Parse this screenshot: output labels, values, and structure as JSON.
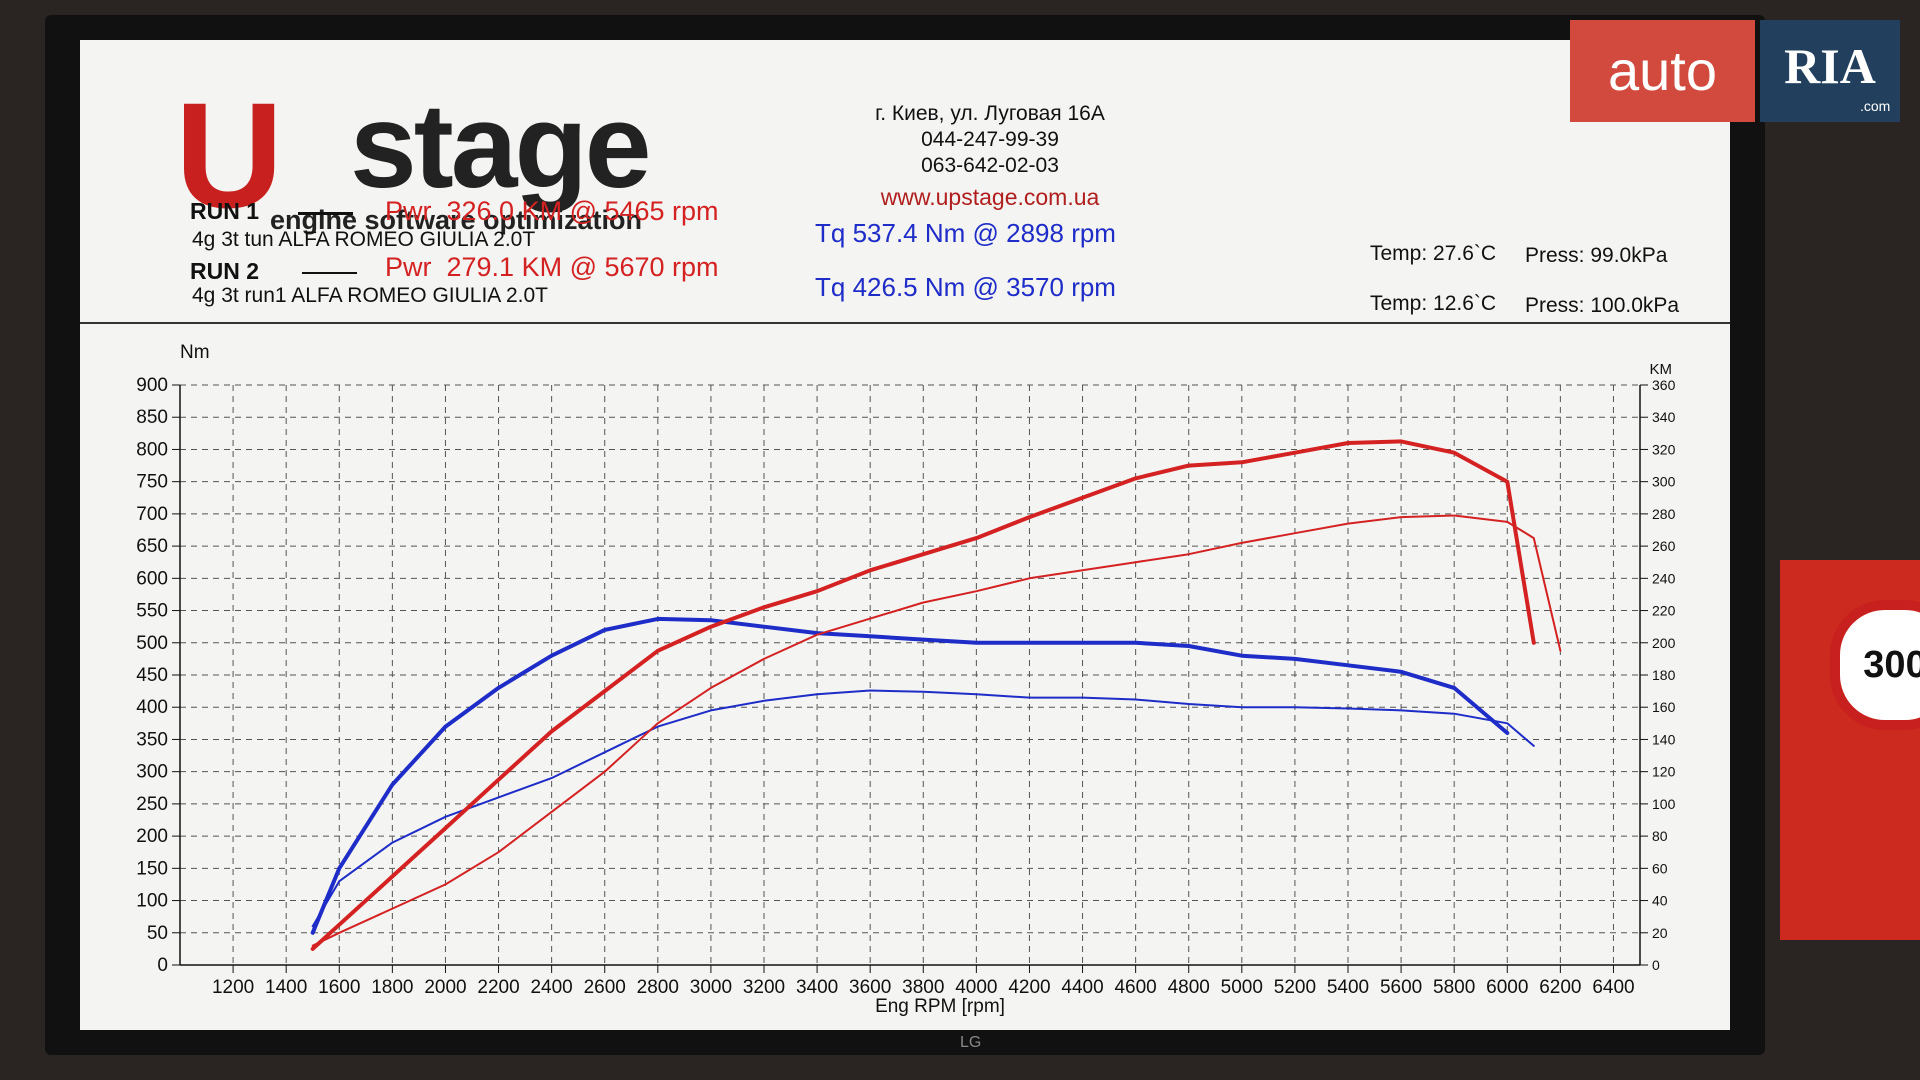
{
  "brand": {
    "logo_mark": "U",
    "logo_word": "stage",
    "tagline": "engine software optimization"
  },
  "contact": {
    "address": "г. Киев, ул. Луговая 16А",
    "phone_1": "044-247-99-39",
    "phone_2": "063-642-02-03",
    "website": "www.upstage.com.ua"
  },
  "runs": [
    {
      "label": "RUN 1",
      "power": "Pwr  326.0 KM @ 5465 rpm",
      "description": "4g 3t tun ALFA ROMEO GIULIA 2.0T",
      "torque": "Tq 537.4 Nm @ 2898 rpm",
      "temp": "Temp: 27.6`C",
      "press": "Press: 99.0kPa"
    },
    {
      "label": "RUN 2",
      "power": "Pwr  279.1 KM @ 5670 rpm",
      "description": "4g 3t run1 ALFA ROMEO GIULIA 2.0T",
      "torque": "Tq 426.5 Nm @ 3570 rpm",
      "temp": "Temp: 12.6`C",
      "press": "Press: 100.0kPa"
    }
  ],
  "watermark": {
    "left": "auto",
    "right": "RIA",
    "suffix": ".com"
  },
  "background": {
    "sign": "300",
    "monitor": "LG"
  },
  "chart_data": {
    "type": "line",
    "x_label": "Eng RPM [rpm]",
    "y_label": "Nm",
    "y2_label": "KM",
    "x": [
      1500,
      1600,
      1800,
      2000,
      2200,
      2400,
      2600,
      2800,
      3000,
      3200,
      3400,
      3600,
      3800,
      4000,
      4200,
      4400,
      4600,
      4800,
      5000,
      5200,
      5400,
      5600,
      5800,
      6000,
      6100,
      6200
    ],
    "xlim": [
      1000,
      6500
    ],
    "xticks": [
      1200,
      1400,
      1600,
      1800,
      2000,
      2200,
      2400,
      2600,
      2800,
      3000,
      3200,
      3400,
      3600,
      3800,
      4000,
      4200,
      4400,
      4600,
      4800,
      5000,
      5200,
      5400,
      5600,
      5800,
      6000,
      6200,
      6400
    ],
    "ylim": [
      0,
      900
    ],
    "yticks": [
      0,
      50,
      100,
      150,
      200,
      250,
      300,
      350,
      400,
      450,
      500,
      550,
      600,
      650,
      700,
      750,
      800,
      850,
      900
    ],
    "y2lim": [
      0,
      360
    ],
    "y2ticks": [
      0,
      20,
      40,
      60,
      80,
      100,
      120,
      140,
      160,
      180,
      200,
      220,
      240,
      260,
      280,
      300,
      320,
      340,
      360
    ],
    "grid": true,
    "series": [
      {
        "color": "#1e2cc8",
        "width": 4,
        "values": [
          50,
          150,
          280,
          370,
          430,
          480,
          520,
          537,
          535,
          525,
          515,
          510,
          505,
          500,
          500,
          500,
          500,
          495,
          480,
          475,
          465,
          455,
          430,
          360,
          null,
          null
        ]
      },
      {
        "color": "#1e2cc8",
        "width": 2,
        "values": [
          60,
          130,
          190,
          230,
          260,
          290,
          330,
          370,
          395,
          410,
          420,
          426,
          424,
          420,
          415,
          415,
          412,
          405,
          400,
          400,
          398,
          395,
          390,
          375,
          340,
          null
        ]
      },
      {
        "color": "#d42222",
        "width": 4,
        "axis": "y2",
        "values": [
          10,
          25,
          55,
          85,
          115,
          145,
          170,
          195,
          210,
          222,
          232,
          245,
          255,
          265,
          278,
          290,
          302,
          310,
          312,
          318,
          324,
          325,
          318,
          300,
          200,
          null
        ]
      },
      {
        "color": "#d42222",
        "width": 2,
        "axis": "y2",
        "values": [
          12,
          20,
          35,
          50,
          70,
          95,
          120,
          150,
          172,
          190,
          205,
          215,
          225,
          232,
          240,
          245,
          250,
          255,
          262,
          268,
          274,
          278,
          279,
          275,
          265,
          195
        ]
      }
    ]
  }
}
